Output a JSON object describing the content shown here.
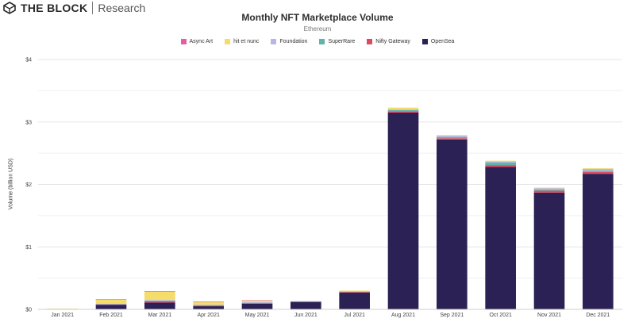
{
  "header": {
    "brand": "THE BLOCK",
    "brand_sub": "Research",
    "logo_icon": "cube-logo-icon"
  },
  "chart_data": {
    "type": "bar",
    "stacked": true,
    "title": "Monthly NFT Marketplace Volume",
    "subtitle": "Ethereum",
    "xlabel": "",
    "ylabel": "Volume (billion USD)",
    "ylim": [
      0,
      4
    ],
    "yticks": [
      "$0",
      "$1",
      "$2",
      "$3",
      "$4"
    ],
    "grid": true,
    "legend_position": "top-center",
    "categories": [
      "Jan 2021",
      "Feb 2021",
      "Mar 2021",
      "Apr 2021",
      "May 2021",
      "Jun 2021",
      "Jul 2021",
      "Aug 2021",
      "Sep 2021",
      "Oct 2021",
      "Nov 2021",
      "Dec 2021"
    ],
    "series": [
      {
        "name": "OpenSea",
        "color": "#2b2154",
        "values": [
          0.008,
          0.07,
          0.11,
          0.05,
          0.09,
          0.12,
          0.27,
          3.15,
          2.72,
          2.28,
          1.87,
          2.17
        ]
      },
      {
        "name": "Nifty Gateway",
        "color": "#e0475f",
        "values": [
          0.0,
          0.01,
          0.02,
          0.01,
          0.01,
          0.005,
          0.01,
          0.02,
          0.02,
          0.03,
          0.03,
          0.03
        ]
      },
      {
        "name": "SuperRare",
        "color": "#5fb3a8",
        "values": [
          0.0,
          0.005,
          0.01,
          0.005,
          0.005,
          0.003,
          0.005,
          0.02,
          0.02,
          0.04,
          0.02,
          0.02
        ]
      },
      {
        "name": "Foundation",
        "color": "#b8b6e6",
        "values": [
          0.0,
          0.005,
          0.01,
          0.01,
          0.01,
          0.003,
          0.005,
          0.01,
          0.02,
          0.02,
          0.02,
          0.03
        ]
      },
      {
        "name": "hit et nunc",
        "color": "#f5dc6b",
        "values": [
          0.004,
          0.07,
          0.14,
          0.05,
          0.03,
          0.0,
          0.01,
          0.03,
          0.01,
          0.01,
          0.01,
          0.01
        ]
      },
      {
        "name": "Async Art",
        "color": "#e35fa3",
        "values": [
          0.0,
          0.001,
          0.002,
          0.001,
          0.001,
          0.0,
          0.0,
          0.0,
          0.0,
          0.0,
          0.0,
          0.0
        ]
      }
    ],
    "legend_order": [
      "Async Art",
      "hit et nunc",
      "Foundation",
      "SuperRare",
      "Nifty Gateway",
      "OpenSea"
    ]
  }
}
